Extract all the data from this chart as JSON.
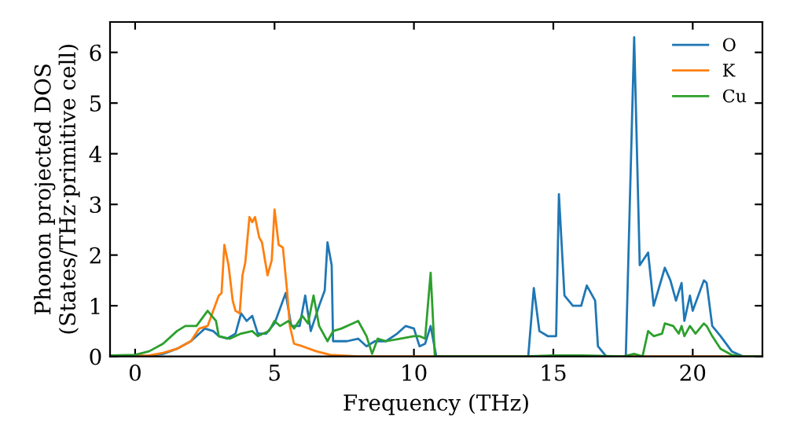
{
  "chart_data": {
    "type": "line",
    "xlabel": "Frequency (THz)",
    "ylabel": "Phonon projected DOS\n(States/THz·primitive cell)",
    "xlim": [
      -0.9,
      22.5
    ],
    "xticks": [
      0,
      5,
      10,
      15,
      20
    ],
    "ylim": [
      0,
      6.6
    ],
    "yticks": [
      0,
      1,
      2,
      3,
      4,
      5,
      6
    ],
    "grid": false,
    "legend": "top right",
    "marker": "none",
    "line_style": "solid",
    "series": [
      {
        "name": "O",
        "color": "#1f77b4",
        "x": [
          -0.9,
          0.5,
          1,
          1.5,
          2,
          2.5,
          2.8,
          3.0,
          3.3,
          3.6,
          3.8,
          4.0,
          4.2,
          4.4,
          4.7,
          5.0,
          5.4,
          5.6,
          5.9,
          6.1,
          6.3,
          6.6,
          6.8,
          6.9,
          7.05,
          7.1,
          7.6,
          8.0,
          8.3,
          8.6,
          9.0,
          9.4,
          9.7,
          10.0,
          10.2,
          10.4,
          10.6,
          10.8,
          14.1,
          14.3,
          14.5,
          14.8,
          15.1,
          15.2,
          15.4,
          15.7,
          16.0,
          16.2,
          16.5,
          16.6,
          16.9,
          17.6,
          17.9,
          18.1,
          18.4,
          18.6,
          19.0,
          19.2,
          19.4,
          19.6,
          19.7,
          19.9,
          20.0,
          20.4,
          20.5,
          20.7,
          21.0,
          21.4,
          21.8,
          22.5
        ],
        "values": [
          0,
          0.01,
          0.05,
          0.15,
          0.3,
          0.55,
          0.5,
          0.4,
          0.35,
          0.45,
          0.85,
          0.7,
          0.8,
          0.45,
          0.45,
          0.65,
          1.25,
          0.6,
          0.6,
          1.2,
          0.5,
          1.0,
          1.3,
          2.25,
          1.8,
          0.3,
          0.3,
          0.35,
          0.2,
          0.3,
          0.3,
          0.45,
          0.6,
          0.55,
          0.2,
          0.25,
          0.6,
          0,
          0,
          1.35,
          0.5,
          0.4,
          0.4,
          3.2,
          1.2,
          1.0,
          1.0,
          1.4,
          1.1,
          0.2,
          0,
          0,
          6.3,
          1.8,
          2.05,
          1.0,
          1.75,
          1.5,
          1.1,
          1.45,
          0.7,
          1.2,
          0.9,
          1.5,
          1.45,
          0.6,
          0.4,
          0.1,
          0,
          0
        ]
      },
      {
        "name": "K",
        "color": "#ff7f0e",
        "x": [
          -0.9,
          0.5,
          1,
          1.5,
          2,
          2.3,
          2.6,
          2.8,
          3.0,
          3.1,
          3.2,
          3.35,
          3.5,
          3.6,
          3.75,
          3.85,
          3.95,
          4.1,
          4.2,
          4.3,
          4.45,
          4.55,
          4.75,
          4.9,
          5.0,
          5.15,
          5.3,
          5.45,
          5.55,
          5.7,
          6,
          6.5,
          7,
          8,
          22.5
        ],
        "values": [
          0,
          0.02,
          0.07,
          0.15,
          0.3,
          0.55,
          0.6,
          0.9,
          1.2,
          1.25,
          2.2,
          1.8,
          1.1,
          0.9,
          0.85,
          1.6,
          1.85,
          2.75,
          2.65,
          2.75,
          2.35,
          2.25,
          1.6,
          1.9,
          2.9,
          2.2,
          2.15,
          1.3,
          0.6,
          0.25,
          0.2,
          0.1,
          0.03,
          0,
          0
        ]
      },
      {
        "name": "Cu",
        "color": "#2ca02c",
        "x": [
          -0.9,
          0,
          0.5,
          1,
          1.5,
          1.8,
          2.2,
          2.6,
          2.9,
          3.0,
          3.4,
          3.8,
          4.2,
          4.4,
          4.8,
          5.0,
          5.2,
          5.5,
          5.7,
          6.0,
          6.2,
          6.4,
          6.6,
          6.9,
          7.1,
          7.4,
          7.8,
          8.0,
          8.3,
          8.5,
          8.7,
          9.0,
          9.5,
          10.0,
          10.2,
          10.4,
          10.6,
          10.75,
          14.0,
          15,
          16,
          17.5,
          17.9,
          18.2,
          18.4,
          18.6,
          18.9,
          19.0,
          19.3,
          19.5,
          19.6,
          19.7,
          19.9,
          20.1,
          20.4,
          20.5,
          20.7,
          21.0,
          21.4,
          21.8,
          22.5
        ],
        "values": [
          0.02,
          0.03,
          0.1,
          0.25,
          0.5,
          0.6,
          0.6,
          0.9,
          0.7,
          0.4,
          0.35,
          0.45,
          0.5,
          0.4,
          0.5,
          0.7,
          0.6,
          0.7,
          0.55,
          0.8,
          0.65,
          1.2,
          0.6,
          0.3,
          0.5,
          0.55,
          0.65,
          0.7,
          0.4,
          0.05,
          0.35,
          0.3,
          0.35,
          0.4,
          0.4,
          0.35,
          1.65,
          0,
          0,
          0.02,
          0.02,
          0,
          0.05,
          0,
          0.5,
          0.4,
          0.45,
          0.65,
          0.6,
          0.45,
          0.6,
          0.4,
          0.6,
          0.45,
          0.65,
          0.6,
          0.4,
          0.15,
          0.03,
          0,
          0
        ]
      }
    ]
  }
}
